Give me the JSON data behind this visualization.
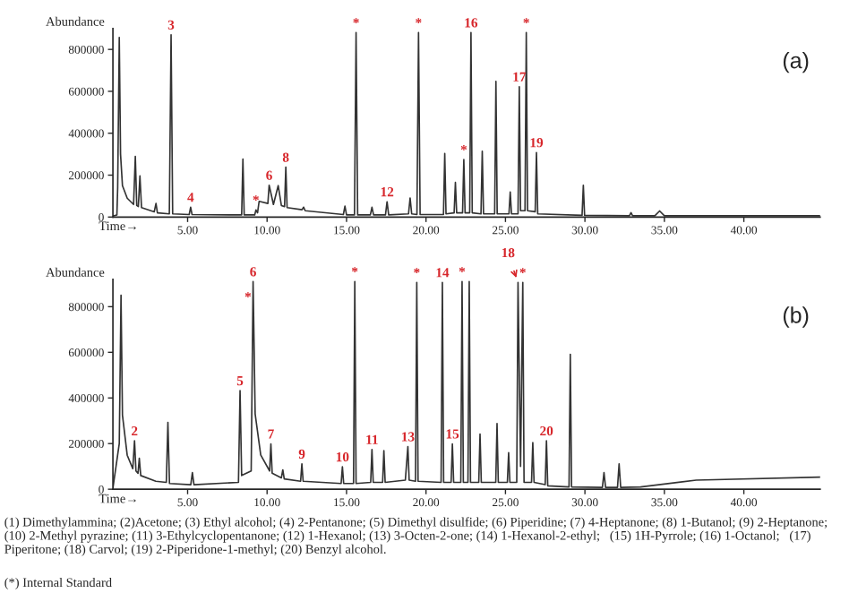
{
  "chart_data": [
    {
      "type": "line",
      "xlabel": "Time→",
      "ylabel": "Abundance",
      "xlim": [
        0.3,
        44.8
      ],
      "ylim": [
        0,
        900000
      ],
      "xticks": [
        {
          "value": 5,
          "label": "5.00"
        },
        {
          "value": 10,
          "label": "10.00"
        },
        {
          "value": 15,
          "label": "15.00"
        },
        {
          "value": 20,
          "label": "20.00"
        },
        {
          "value": 25,
          "label": "25.00"
        },
        {
          "value": 30,
          "label": "30.00"
        },
        {
          "value": 35,
          "label": "35.00"
        },
        {
          "value": 40,
          "label": "40.00"
        }
      ],
      "yticks": [
        0,
        200000,
        400000,
        600000,
        800000
      ],
      "series": [
        {
          "color": "#333333",
          "x": [
            0.3,
            0.55,
            0.6,
            0.7,
            0.78,
            0.9,
            1.2,
            1.6,
            1.71,
            1.8,
            1.9,
            2.0,
            2.1,
            2.9,
            3.01,
            3.1,
            3.85,
            3.96,
            4.06,
            5.1,
            5.19,
            5.28,
            8.4,
            8.48,
            8.56,
            9.22,
            9.3,
            9.4,
            9.5,
            10.05,
            10.13,
            10.4,
            10.7,
            10.9,
            11.1,
            11.18,
            11.26,
            12.2,
            12.3,
            12.4,
            14.8,
            14.9,
            15.0,
            15.5,
            15.6,
            15.7,
            16.5,
            16.6,
            16.7,
            17.45,
            17.55,
            17.65,
            18.9,
            19.0,
            19.1,
            19.43,
            19.53,
            19.63,
            21.1,
            21.18,
            21.26,
            21.77,
            21.85,
            21.93,
            22.3,
            22.38,
            22.46,
            22.75,
            22.83,
            22.91,
            23.46,
            23.54,
            23.62,
            24.32,
            24.4,
            24.48,
            25.22,
            25.3,
            25.38,
            25.79,
            25.87,
            25.95,
            26.23,
            26.31,
            26.39,
            26.87,
            26.95,
            27.03,
            29.82,
            29.9,
            29.98,
            32.8,
            32.9,
            33.0,
            34.4,
            34.7,
            35.0,
            44.8
          ],
          "values": [
            5000,
            10000,
            140000,
            857000,
            300000,
            150000,
            90000,
            60000,
            290000,
            55000,
            50000,
            196000,
            45000,
            25000,
            65000,
            20000,
            15000,
            870000,
            15000,
            12000,
            47000,
            12000,
            10000,
            277000,
            10000,
            10000,
            34000,
            20000,
            75000,
            65000,
            152000,
            60000,
            150000,
            55000,
            50000,
            238000,
            45000,
            35000,
            47000,
            30000,
            12000,
            52000,
            10000,
            10000,
            880000,
            10000,
            10000,
            47000,
            10000,
            10000,
            73000,
            10000,
            15000,
            91000,
            15000,
            12000,
            880000,
            12000,
            12000,
            303000,
            15000,
            20000,
            165000,
            20000,
            20000,
            274000,
            20000,
            20000,
            880000,
            20000,
            15000,
            314000,
            15000,
            15000,
            648000,
            15000,
            15000,
            120000,
            15000,
            15000,
            622000,
            30000,
            30000,
            880000,
            30000,
            25000,
            308000,
            15000,
            8000,
            152000,
            8000,
            6000,
            21000,
            6000,
            6000,
            29000,
            6000,
            6000
          ]
        }
      ],
      "annotations": [
        "(a)",
        {
          "text": "3",
          "x": 3.96,
          "y": 870000
        },
        {
          "text": "4",
          "x": 5.19,
          "y": 47000
        },
        {
          "text": "*",
          "x": 9.3,
          "y": 34000
        },
        {
          "text": "6",
          "x": 10.13,
          "y": 152000
        },
        {
          "text": "8",
          "x": 11.18,
          "y": 238000
        },
        {
          "text": "*",
          "x": 15.6,
          "y": 880000
        },
        {
          "text": "12",
          "x": 17.55,
          "y": 73000
        },
        {
          "text": "*",
          "x": 19.53,
          "y": 880000
        },
        {
          "text": "*",
          "x": 22.38,
          "y": 274000
        },
        {
          "text": "16",
          "x": 22.83,
          "y": 880000
        },
        {
          "text": "17",
          "x": 25.87,
          "y": 622000
        },
        {
          "text": "*",
          "x": 26.31,
          "y": 880000
        },
        {
          "text": "19",
          "x": 26.95,
          "y": 308000
        }
      ]
    },
    {
      "type": "line",
      "xlabel": "Time→",
      "ylabel": "Abundance",
      "xlim": [
        0.3,
        44.8
      ],
      "ylim": [
        0,
        920000
      ],
      "xticks": [
        {
          "value": 5,
          "label": "5.00"
        },
        {
          "value": 10,
          "label": "10.00"
        },
        {
          "value": 15,
          "label": "15.00"
        },
        {
          "value": 20,
          "label": "20.00"
        },
        {
          "value": 25,
          "label": "25.00"
        },
        {
          "value": 30,
          "label": "30.00"
        },
        {
          "value": 35,
          "label": "35.00"
        },
        {
          "value": 40,
          "label": "40.00"
        }
      ],
      "yticks": [
        0,
        200000,
        400000,
        600000,
        800000
      ],
      "series": [
        {
          "color": "#333333",
          "x": [
            0.3,
            0.7,
            0.81,
            0.9,
            1.2,
            1.55,
            1.66,
            1.75,
            1.88,
            1.96,
            2.05,
            3.0,
            3.66,
            3.76,
            3.86,
            5.2,
            5.3,
            5.4,
            8.2,
            8.3,
            8.4,
            9.0,
            9.12,
            9.25,
            9.6,
            10.16,
            10.24,
            10.32,
            10.9,
            10.99,
            11.08,
            12.11,
            12.19,
            12.27,
            14.66,
            14.74,
            14.82,
            15.44,
            15.52,
            15.6,
            16.52,
            16.6,
            16.68,
            17.27,
            17.35,
            17.43,
            18.7,
            18.86,
            18.94,
            19.34,
            19.42,
            19.5,
            20.95,
            21.03,
            21.11,
            21.58,
            21.66,
            21.74,
            22.19,
            22.27,
            22.35,
            22.64,
            22.72,
            22.8,
            23.32,
            23.4,
            23.48,
            24.39,
            24.47,
            24.55,
            25.12,
            25.2,
            25.28,
            25.71,
            25.79,
            25.95,
            26.09,
            26.17,
            26.64,
            26.72,
            26.8,
            27.5,
            27.58,
            27.66,
            29.0,
            29.08,
            29.16,
            31.1,
            31.2,
            31.3,
            32.05,
            32.15,
            32.25,
            33.5,
            37.0,
            44.8
          ],
          "values": [
            5000,
            200000,
            850000,
            325000,
            149000,
            90000,
            212000,
            80000,
            70000,
            136000,
            60000,
            35000,
            30000,
            293000,
            25000,
            20000,
            73000,
            20000,
            30000,
            432000,
            60000,
            80000,
            910000,
            330000,
            150000,
            80000,
            199000,
            70000,
            50000,
            85000,
            45000,
            35000,
            111000,
            35000,
            25000,
            98000,
            25000,
            25000,
            910000,
            25000,
            30000,
            174000,
            30000,
            30000,
            169000,
            30000,
            40000,
            187000,
            40000,
            35000,
            906000,
            35000,
            30000,
            906000,
            30000,
            30000,
            199000,
            30000,
            30000,
            910000,
            30000,
            30000,
            910000,
            30000,
            30000,
            242000,
            30000,
            30000,
            288000,
            30000,
            30000,
            160000,
            30000,
            30000,
            906000,
            100000,
            906000,
            30000,
            30000,
            204000,
            30000,
            20000,
            212000,
            15000,
            10000,
            591000,
            10000,
            8000,
            73000,
            8000,
            8000,
            111000,
            8000,
            10000,
            40000,
            53000
          ]
        }
      ],
      "annotations": [
        "(b)",
        {
          "text": "2",
          "x": 1.66,
          "y": 212000
        },
        {
          "text": "5",
          "x": 8.3,
          "y": 432000
        },
        {
          "text": "*",
          "x": 8.8,
          "y": 800000
        },
        {
          "text": "6",
          "x": 9.12,
          "y": 910000
        },
        {
          "text": "7",
          "x": 10.24,
          "y": 199000
        },
        {
          "text": "9",
          "x": 12.19,
          "y": 111000
        },
        {
          "text": "10",
          "x": 14.74,
          "y": 98000
        },
        {
          "text": "*",
          "x": 15.52,
          "y": 910000
        },
        {
          "text": "11",
          "x": 16.6,
          "y": 174000
        },
        {
          "text": "13",
          "x": 18.86,
          "y": 187000
        },
        {
          "text": "*",
          "x": 19.42,
          "y": 906000
        },
        {
          "text": "14",
          "x": 21.03,
          "y": 906000
        },
        {
          "text": "15",
          "x": 21.66,
          "y": 199000
        },
        {
          "text": "*",
          "x": 22.27,
          "y": 910000
        },
        {
          "text": "*",
          "x": 26.09,
          "y": 906000
        },
        {
          "text": "18",
          "x": 25.79,
          "y": 906000
        },
        {
          "text": "20",
          "x": 27.58,
          "y": 212000
        },
        "(1) Dimethylammina; (2)Acetone; (3) Ethyl alcohol; (4) 2-Pentanone; (5) Dimethyl disulfide; (6) Piperidine; (7) 4-Heptanone; (8) 1-Butanol; (9) 2-Heptanone; (10) 2-Methyl pyrazine; (11) 3-Ethylcyclopentanone; (12) 1-Hexanol; (13) 3-Octen-2-one; (14) 1-Hexanol-2-ethyl;   (15) 1H-Pyrrole; (16) 1-Octanol;   (17) Piperitone; (18) Carvol; (19) 2-Piperidone-1-methyl; (20) Benzyl alcohol.",
        "(*) Internal Standard"
      ]
    }
  ]
}
